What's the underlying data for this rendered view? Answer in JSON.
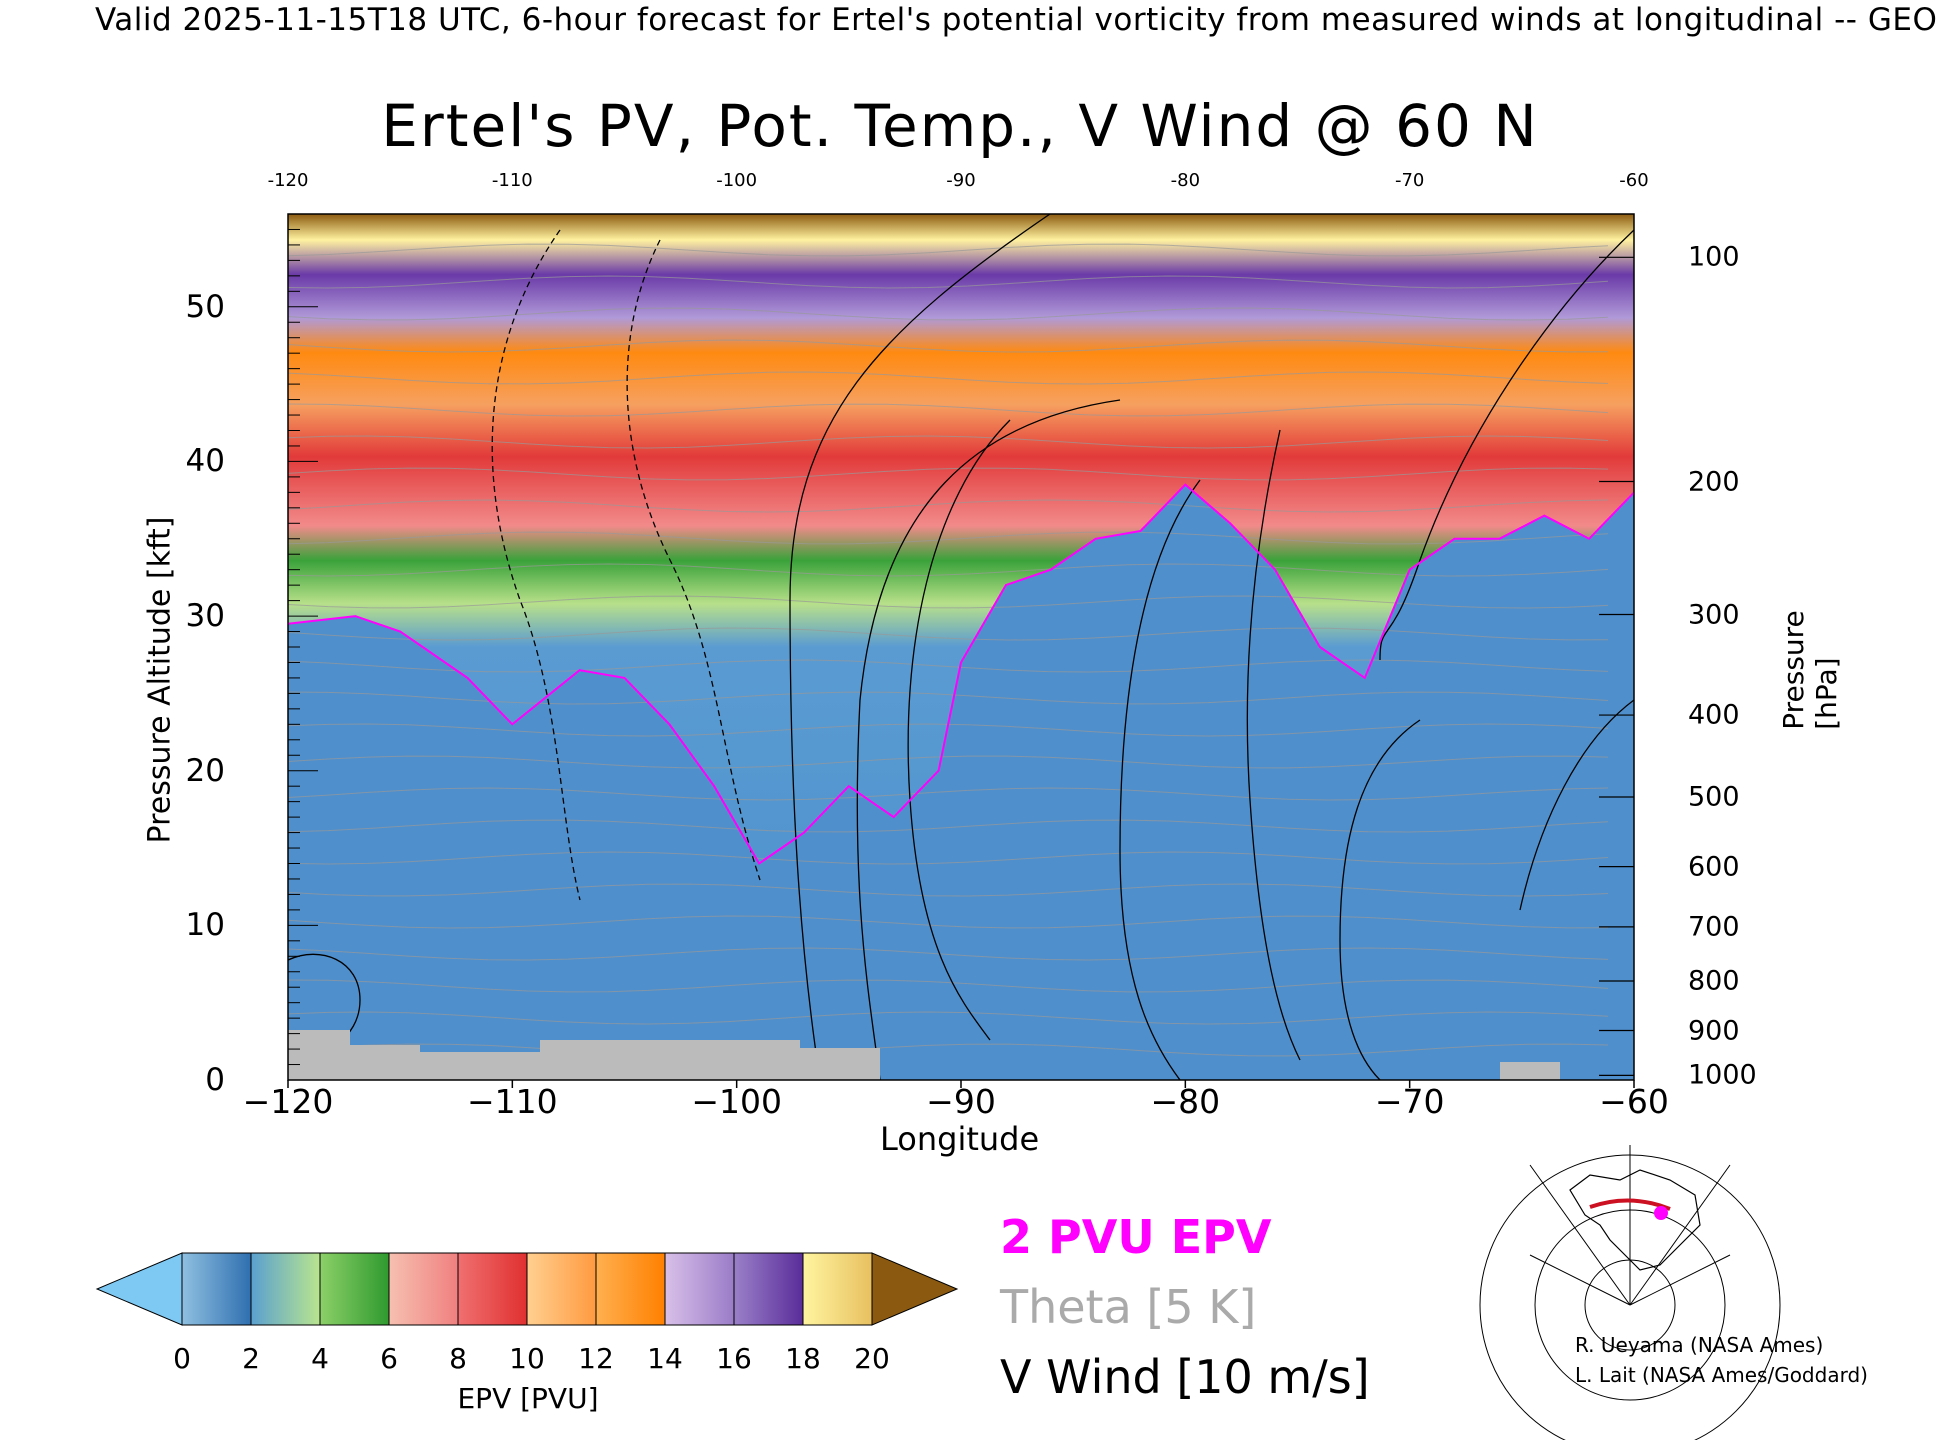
{
  "header": "Valid 2025-11-15T18 UTC, 6-hour forecast for Ertel's potential vorticity from measured winds at longitudinal -- GEO",
  "chart_data": {
    "type": "heatmap",
    "title": "Ertel's PV, Pot. Temp., V Wind @ 60 N",
    "xlabel": "Longitude",
    "ylabel": "Pressure Altitude [kft]",
    "y2label": "Pressure [hPa]",
    "xlim": [
      -120,
      -60
    ],
    "ylim": [
      0,
      56
    ],
    "x_ticks": [
      -120,
      -110,
      -100,
      -90,
      -80,
      -70,
      -60
    ],
    "x_tick_labels": [
      "−120",
      "−110",
      "−100",
      "−90",
      "−80",
      "−70",
      "−60"
    ],
    "x_top_tick_labels": [
      "-120",
      "-110",
      "-100",
      "-90",
      "-80",
      "-70",
      "-60"
    ],
    "y_ticks": [
      0,
      10,
      20,
      30,
      40,
      50
    ],
    "pressure_ticks": [
      {
        "label": "100",
        "kft": 53.2
      },
      {
        "label": "200",
        "kft": 38.7
      },
      {
        "label": "300",
        "kft": 30.1
      },
      {
        "label": "400",
        "kft": 23.6
      },
      {
        "label": "500",
        "kft": 18.3
      },
      {
        "label": "600",
        "kft": 13.8
      },
      {
        "label": "700",
        "kft": 9.9
      },
      {
        "label": "800",
        "kft": 6.4
      },
      {
        "label": "900",
        "kft": 3.2
      },
      {
        "label": "1000",
        "kft": 0.3
      }
    ],
    "tropopause_2pvu_kft": [
      {
        "lon": -120,
        "kft": 29.5
      },
      {
        "lon": -117,
        "kft": 30.0
      },
      {
        "lon": -115,
        "kft": 29.0
      },
      {
        "lon": -112,
        "kft": 26.0
      },
      {
        "lon": -110,
        "kft": 23.0
      },
      {
        "lon": -107,
        "kft": 26.5
      },
      {
        "lon": -105,
        "kft": 26.0
      },
      {
        "lon": -103,
        "kft": 23.0
      },
      {
        "lon": -101,
        "kft": 19.0
      },
      {
        "lon": -99,
        "kft": 14.0
      },
      {
        "lon": -97,
        "kft": 16.0
      },
      {
        "lon": -95,
        "kft": 19.0
      },
      {
        "lon": -93,
        "kft": 17.0
      },
      {
        "lon": -91,
        "kft": 20.0
      },
      {
        "lon": -90,
        "kft": 27.0
      },
      {
        "lon": -88,
        "kft": 32.0
      },
      {
        "lon": -86,
        "kft": 33.0
      },
      {
        "lon": -84,
        "kft": 35.0
      },
      {
        "lon": -82,
        "kft": 35.5
      },
      {
        "lon": -80,
        "kft": 38.5
      },
      {
        "lon": -78,
        "kft": 36.0
      },
      {
        "lon": -76,
        "kft": 33.0
      },
      {
        "lon": -74,
        "kft": 28.0
      },
      {
        "lon": -72,
        "kft": 26.0
      },
      {
        "lon": -70,
        "kft": 33.0
      },
      {
        "lon": -68,
        "kft": 35.0
      },
      {
        "lon": -66,
        "kft": 35.0
      },
      {
        "lon": -64,
        "kft": 36.5
      },
      {
        "lon": -62,
        "kft": 35.0
      },
      {
        "lon": -60,
        "kft": 38.0
      }
    ],
    "colorbar": {
      "label": "EPV [PVU]",
      "ticks": [
        0,
        2,
        4,
        6,
        8,
        10,
        12,
        14,
        16,
        18,
        20
      ],
      "below_color": "#7ec8f4",
      "above_color": "#8b5a10",
      "segments": [
        {
          "from": 0,
          "to": 2,
          "color_start": "#8fc0e0",
          "color_end": "#2f6fb0"
        },
        {
          "from": 2,
          "to": 4,
          "color_start": "#5aa0d0",
          "color_end": "#b9e58e"
        },
        {
          "from": 4,
          "to": 6,
          "color_start": "#8cd068",
          "color_end": "#2f9a2f"
        },
        {
          "from": 6,
          "to": 8,
          "color_start": "#f6c0b0",
          "color_end": "#f08080"
        },
        {
          "from": 8,
          "to": 10,
          "color_start": "#f07070",
          "color_end": "#e03030"
        },
        {
          "from": 10,
          "to": 12,
          "color_start": "#ffd090",
          "color_end": "#ff9a40"
        },
        {
          "from": 12,
          "to": 14,
          "color_start": "#ffb050",
          "color_end": "#ff8000"
        },
        {
          "from": 14,
          "to": 16,
          "color_start": "#d8c0e8",
          "color_end": "#9a7cc8"
        },
        {
          "from": 16,
          "to": 18,
          "color_start": "#9a80c8",
          "color_end": "#5a2d9a"
        },
        {
          "from": 18,
          "to": 20,
          "color_start": "#fff5a0",
          "color_end": "#e8c060"
        }
      ]
    }
  },
  "legend": {
    "pv": "2 PVU EPV",
    "theta": "Theta [5 K]",
    "vwind": "V Wind [10 m/s]"
  },
  "credits": {
    "line1": "R. Ueyama (NASA Ames)",
    "line2": "L. Lait (NASA Ames/Goddard)"
  },
  "colors": {
    "tropopause": "#ff00ff",
    "theta": "#aaaaaa",
    "terrain": "#bbbbbb",
    "map_track": "#cc1122",
    "map_marker": "#ff00ff"
  }
}
